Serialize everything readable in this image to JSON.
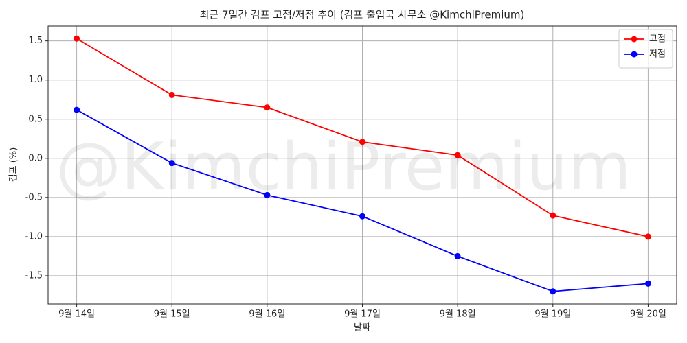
{
  "chart_data": {
    "type": "line",
    "title": "최근 7일간 김프 고점/저점 추이 (김프 출입국 사무소 @KimchiPremium)",
    "watermark": "@KimchiPremium",
    "x_label": "날짜",
    "y_label": "김프 (%)",
    "categories": [
      "9월 14일",
      "9월 15일",
      "9월 16일",
      "9월 17일",
      "9월 18일",
      "9월 19일",
      "9월 20일"
    ],
    "series": [
      {
        "name": "고점",
        "color": "#ff0000",
        "values": [
          1.53,
          0.81,
          0.65,
          0.21,
          0.04,
          -0.73,
          -1.0
        ]
      },
      {
        "name": "저점",
        "color": "#0000ff",
        "values": [
          0.62,
          -0.06,
          -0.47,
          -0.74,
          -1.25,
          -1.7,
          -1.6
        ]
      }
    ],
    "ylim": [
      -1.86,
      1.69
    ],
    "yticks": [
      -1.5,
      {
        "value": -1.0,
        "label": "-1.0"
      },
      -0.5,
      {
        "value": 0.0,
        "label": "0.0"
      },
      0.5,
      {
        "value": 1.0,
        "label": "1.0"
      },
      1.5
    ],
    "grid": true,
    "legend": "upper right"
  }
}
